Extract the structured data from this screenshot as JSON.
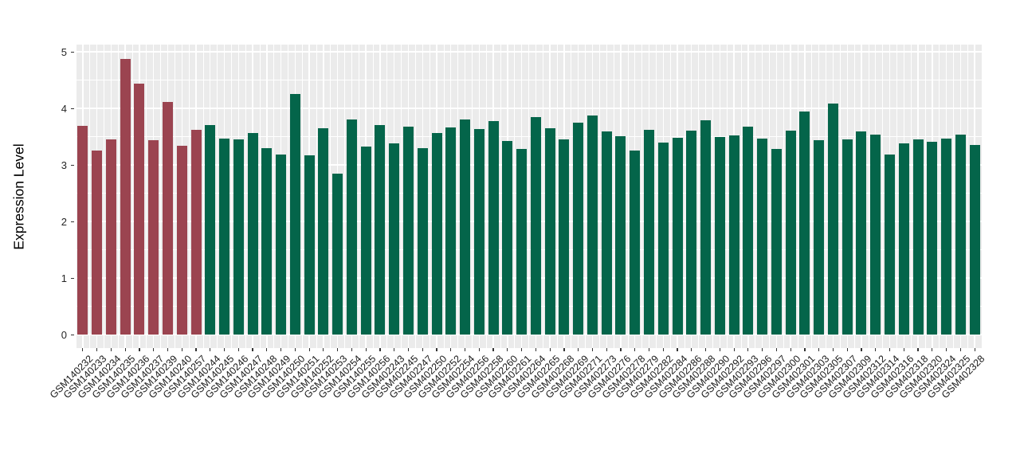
{
  "chart_data": {
    "type": "bar",
    "title": "",
    "xlabel": "",
    "ylabel": "Expression Level",
    "ylim": [
      0,
      5
    ],
    "yticks": [
      0,
      1,
      2,
      3,
      4,
      5
    ],
    "grid": "white major and minor gridlines on gray panel",
    "legend": "none",
    "panel_background": "#EBEBEB",
    "gridline_color": "#FFFFFF",
    "group_colors": [
      "#9B4450",
      "#04654A"
    ],
    "categories": [
      "GSM140232",
      "GSM140233",
      "GSM140234",
      "GSM140235",
      "GSM140236",
      "GSM140237",
      "GSM140239",
      "GSM140240",
      "GSM140257",
      "GSM140244",
      "GSM140245",
      "GSM140246",
      "GSM140247",
      "GSM140248",
      "GSM140249",
      "GSM140250",
      "GSM140251",
      "GSM140252",
      "GSM140253",
      "GSM140254",
      "GSM140255",
      "GSM140256",
      "GSM402243",
      "GSM402245",
      "GSM402247",
      "GSM402250",
      "GSM402252",
      "GSM402254",
      "GSM402256",
      "GSM402258",
      "GSM402260",
      "GSM402261",
      "GSM402264",
      "GSM402265",
      "GSM402268",
      "GSM402269",
      "GSM402271",
      "GSM402273",
      "GSM402276",
      "GSM402278",
      "GSM402279",
      "GSM402282",
      "GSM402284",
      "GSM402286",
      "GSM402288",
      "GSM402290",
      "GSM402292",
      "GSM402293",
      "GSM402296",
      "GSM402297",
      "GSM402300",
      "GSM402301",
      "GSM402303",
      "GSM402305",
      "GSM402307",
      "GSM402309",
      "GSM402312",
      "GSM402314",
      "GSM402316",
      "GSM402318",
      "GSM402320",
      "GSM402324",
      "GSM402325",
      "GSM402328"
    ],
    "values": [
      3.69,
      3.26,
      3.45,
      4.87,
      4.43,
      3.44,
      4.11,
      3.34,
      3.62,
      3.7,
      3.47,
      3.45,
      3.57,
      3.29,
      3.19,
      4.26,
      3.17,
      3.65,
      2.84,
      3.8,
      3.33,
      3.7,
      3.38,
      3.68,
      3.3,
      3.57,
      3.66,
      3.8,
      3.63,
      3.77,
      3.42,
      3.28,
      3.84,
      3.65,
      3.45,
      3.74,
      3.87,
      3.59,
      3.51,
      3.26,
      3.62,
      3.4,
      3.48,
      3.61,
      3.79,
      3.5,
      3.52,
      3.68,
      3.46,
      3.28,
      3.6,
      3.94,
      3.44,
      4.08,
      3.45,
      3.59,
      3.54,
      3.19,
      3.38,
      3.45,
      3.41,
      3.46,
      3.54,
      3.35
    ],
    "group_index": [
      0,
      0,
      0,
      0,
      0,
      0,
      0,
      0,
      0,
      1,
      1,
      1,
      1,
      1,
      1,
      1,
      1,
      1,
      1,
      1,
      1,
      1,
      1,
      1,
      1,
      1,
      1,
      1,
      1,
      1,
      1,
      1,
      1,
      1,
      1,
      1,
      1,
      1,
      1,
      1,
      1,
      1,
      1,
      1,
      1,
      1,
      1,
      1,
      1,
      1,
      1,
      1,
      1,
      1,
      1,
      1,
      1,
      1,
      1,
      1,
      1,
      1,
      1,
      1
    ]
  },
  "layout_text": {
    "y_axis_title": "Expression Level"
  }
}
